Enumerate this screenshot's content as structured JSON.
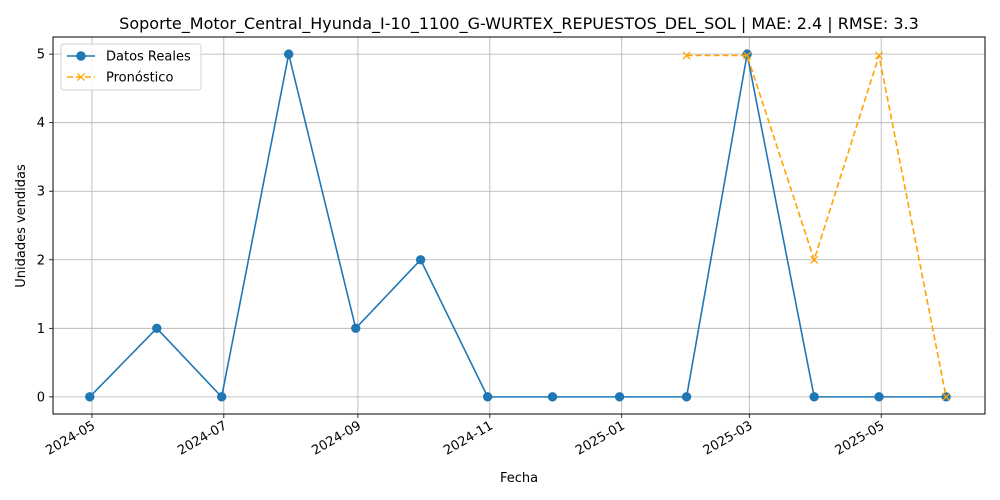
{
  "chart_data": {
    "type": "line",
    "title": "Soporte_Motor_Central_Hyunda_I-10_1100_G-WURTEX_REPUESTOS_DEL_SOL | MAE: 2.4 | RMSE: 3.3",
    "xlabel": "Fecha",
    "ylabel": "Unidades vendidas",
    "x_axis_type": "date",
    "xlim": [
      "2024-04-13",
      "2025-06-18"
    ],
    "ylim": [
      -0.25,
      5.25
    ],
    "x_ticks": [
      "2024-05-01",
      "2024-07-01",
      "2024-09-01",
      "2024-11-01",
      "2025-01-01",
      "2025-03-01",
      "2025-05-01"
    ],
    "x_tick_labels": [
      "2024-05",
      "2024-07",
      "2024-09",
      "2024-11",
      "2025-01",
      "2025-03",
      "2025-05"
    ],
    "y_ticks": [
      0,
      1,
      2,
      3,
      4,
      5
    ],
    "y_tick_labels": [
      "0",
      "1",
      "2",
      "3",
      "4",
      "5"
    ],
    "grid": true,
    "legend_position": "top-left",
    "series": [
      {
        "name": "Datos Reales",
        "color": "#1f77b4",
        "style": "solid",
        "marker": "circle",
        "x": [
          "2024-04-30",
          "2024-05-31",
          "2024-06-30",
          "2024-07-31",
          "2024-08-31",
          "2024-09-30",
          "2024-10-31",
          "2024-11-30",
          "2024-12-31",
          "2025-01-31",
          "2025-02-28",
          "2025-03-31",
          "2025-04-30",
          "2025-05-31"
        ],
        "values": [
          0,
          1,
          0,
          5,
          1,
          2,
          0,
          0,
          0,
          0,
          5,
          0,
          0,
          0
        ]
      },
      {
        "name": "Pronóstico",
        "color": "#ffa500",
        "style": "dashed",
        "marker": "x",
        "x": [
          "2025-01-31",
          "2025-02-28",
          "2025-03-31",
          "2025-04-30",
          "2025-05-31"
        ],
        "values": [
          4.98,
          4.98,
          2.0,
          4.98,
          0.0
        ]
      }
    ]
  }
}
